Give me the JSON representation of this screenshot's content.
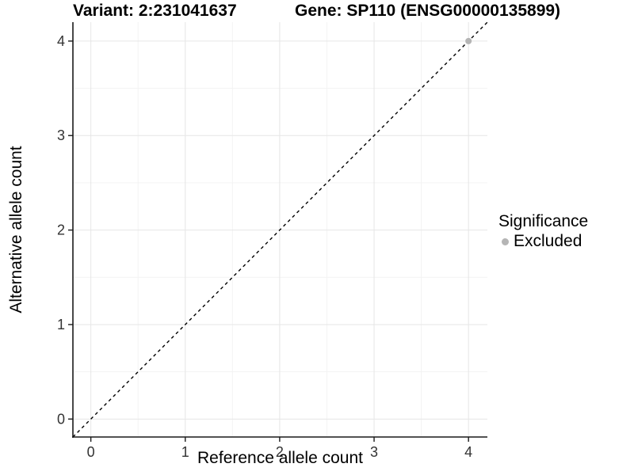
{
  "chart_data": {
    "type": "scatter",
    "titles": {
      "left": "Variant: 2:231041637",
      "right": "Gene: SP110 (ENSG00000135899)"
    },
    "xlabel": "Reference allele count",
    "ylabel": "Alternative allele count",
    "xlim": [
      -0.19,
      4.2
    ],
    "ylim": [
      -0.19,
      4.2
    ],
    "x_ticks": [
      0,
      1,
      2,
      3,
      4
    ],
    "y_ticks": [
      0,
      1,
      2,
      3,
      4
    ],
    "minor_gridlines": [
      0.5,
      1.5,
      2.5,
      3.5
    ],
    "grid": true,
    "identity_line": {
      "style": "dashed",
      "slope": 1,
      "intercept": 0
    },
    "series": [
      {
        "name": "Excluded",
        "color": "#b5b5b5",
        "points": [
          {
            "x": 4,
            "y": 4
          }
        ]
      }
    ],
    "legend": {
      "title": "Significance",
      "position": "right",
      "entries": [
        {
          "label": "Excluded",
          "color": "#b5b5b5"
        }
      ]
    }
  },
  "colors": {
    "background": "#ffffff",
    "grid_major": "#e6e6e6",
    "grid_minor": "#f3f3f3",
    "axis_line": "#1a1a1a",
    "tick_label": "#333333",
    "identity_line": "#000000",
    "point": "#b5b5b5"
  }
}
